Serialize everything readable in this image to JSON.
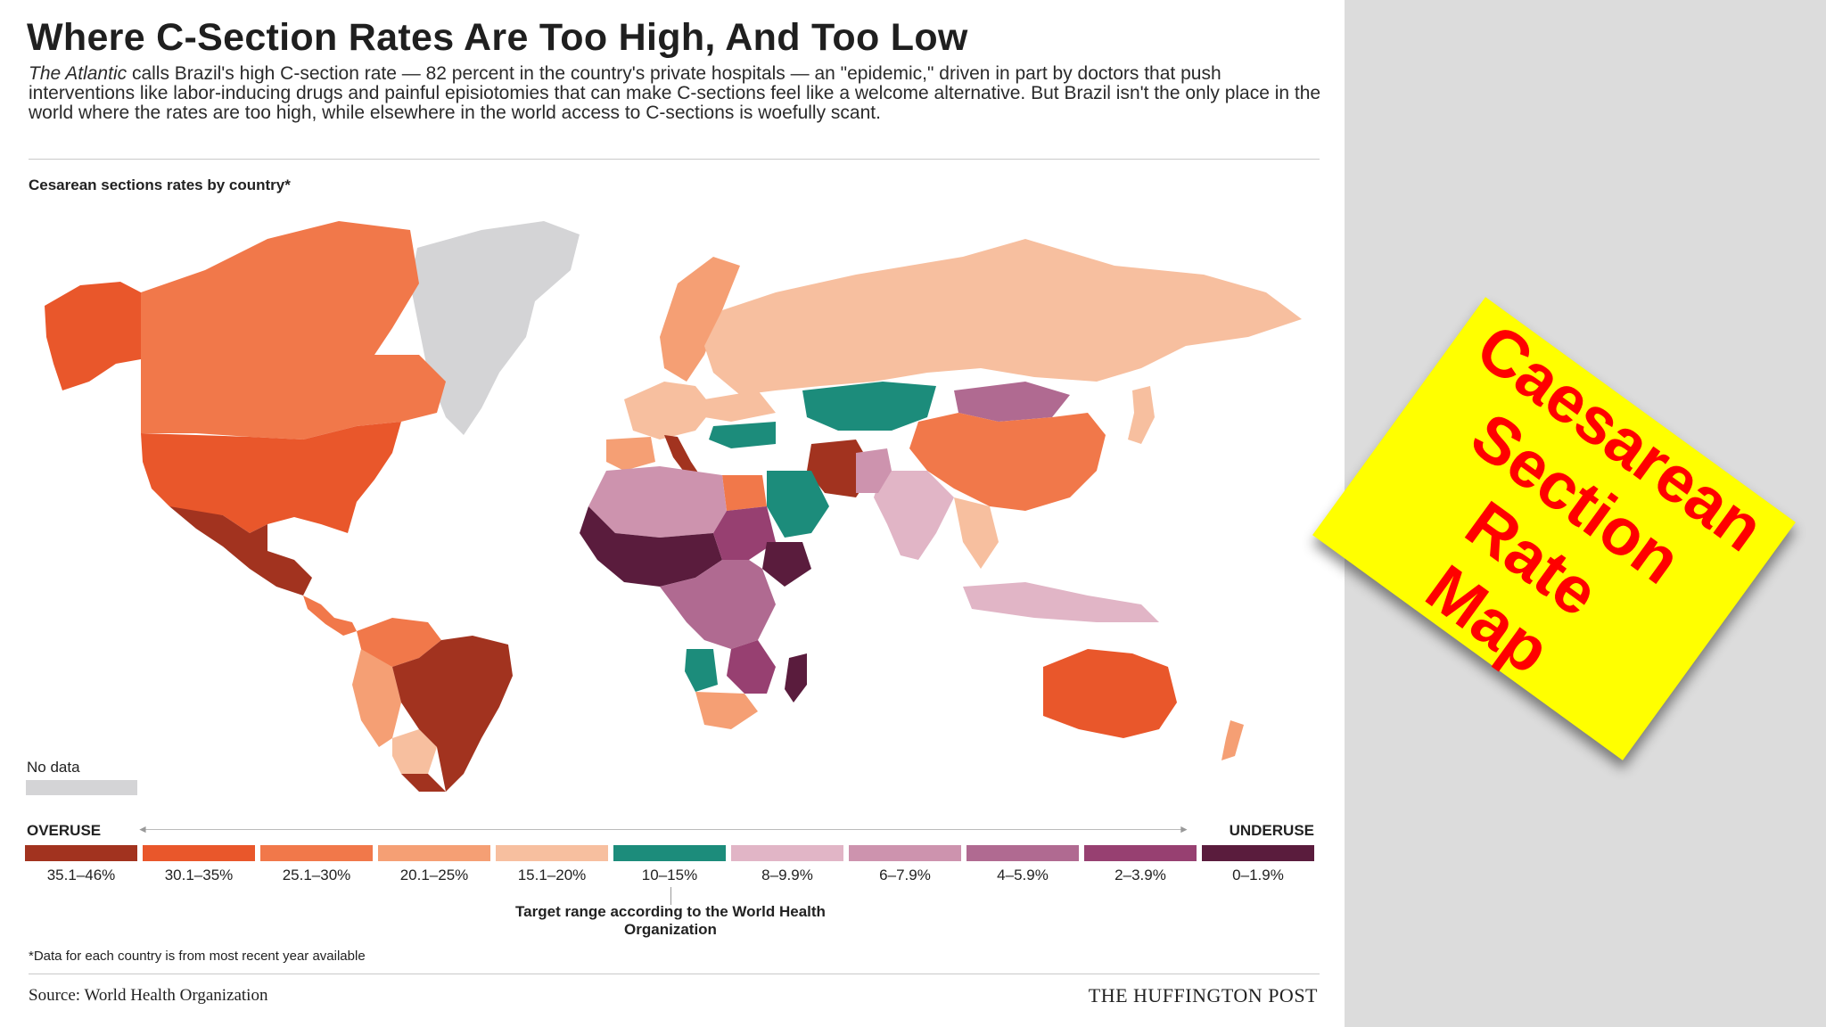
{
  "title": "Where C-Section Rates Are Too High, And Too Low",
  "intro": {
    "publication": "The Atlantic",
    "text": " calls Brazil's high C-section rate — 82 percent in the country's private hospitals — an \"epidemic,\" driven in part by doctors that push interventions like labor-inducing drugs and painful episiotomies that can make C-sections feel like a welcome alternative. But Brazil isn't the only place in the world where the rates are too high, while elsewhere in the world access to C-sections is woefully scant."
  },
  "map_title": "Cesarean sections rates by country*",
  "no_data": {
    "label": "No data",
    "color": "#d4d4d6"
  },
  "legend": {
    "left_label": "OVERUSE",
    "right_label": "UNDERUSE",
    "bins": [
      {
        "label": "35.1–46%",
        "color": "#a2331f"
      },
      {
        "label": "30.1–35%",
        "color": "#e9572b"
      },
      {
        "label": "25.1–30%",
        "color": "#f1784a"
      },
      {
        "label": "20.1–25%",
        "color": "#f59f74"
      },
      {
        "label": "15.1–20%",
        "color": "#f7bf9f"
      },
      {
        "label": "10–15%",
        "color": "#1c8c7b"
      },
      {
        "label": "8–9.9%",
        "color": "#e1b5c6"
      },
      {
        "label": "6–7.9%",
        "color": "#cd93ae"
      },
      {
        "label": "4–5.9%",
        "color": "#b06a91"
      },
      {
        "label": "2–3.9%",
        "color": "#974071"
      },
      {
        "label": "0–1.9%",
        "color": "#5a1c3d"
      }
    ],
    "target_note": "Target range according to the World Health Organization"
  },
  "footnote": "*Data for each country is from most recent year available",
  "source": "Source: World Health Organization",
  "publisher": "THE HUFFINGTON POST",
  "sticker": {
    "line1": "Caesarean",
    "line2": "Section Rate",
    "line3": "Map",
    "bg": "#ffff00",
    "fg": "#ff0000"
  }
}
